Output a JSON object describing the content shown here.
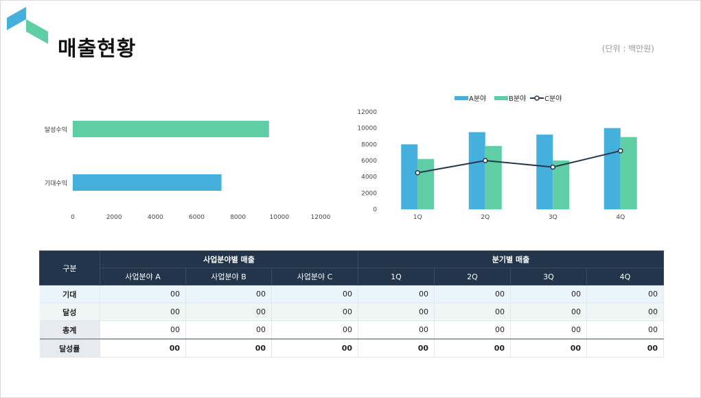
{
  "header": {
    "title": "매출현황",
    "unit": "(단위 : 백만원)"
  },
  "colors": {
    "a": "#45b0dc",
    "b": "#5fcea4",
    "line": "#25374a",
    "header": "#22354a"
  },
  "chart_data": [
    {
      "type": "bar",
      "orientation": "horizontal",
      "categories": [
        "달성수익",
        "기대수익"
      ],
      "values": [
        9500,
        7200
      ],
      "xlim": [
        0,
        12000
      ],
      "xticks": [
        "0",
        "2000",
        "4000",
        "6000",
        "8000",
        "10000",
        "12000"
      ],
      "bar_colors": [
        "#5fcea4",
        "#45b0dc"
      ]
    },
    {
      "type": "bar",
      "categories": [
        "1Q",
        "2Q",
        "3Q",
        "4Q"
      ],
      "ylim": [
        0,
        12000
      ],
      "yticks": [
        "0",
        "2000",
        "4000",
        "6000",
        "8000",
        "10000",
        "12000"
      ],
      "series": [
        {
          "name": "A분야",
          "type": "bar",
          "color": "#45b0dc",
          "values": [
            8000,
            9500,
            9200,
            10000
          ]
        },
        {
          "name": "B분야",
          "type": "bar",
          "color": "#5fcea4",
          "values": [
            6200,
            7800,
            6000,
            8900
          ]
        },
        {
          "name": "C분야",
          "type": "line",
          "color": "#25374a",
          "values": [
            4500,
            6000,
            5200,
            7200
          ]
        }
      ],
      "legend": "top-center"
    }
  ],
  "table": {
    "corner": "구분",
    "group1": "사업분야별 매출",
    "group2": "분기별 매출",
    "cols": [
      "사업분야 A",
      "사업분야 B",
      "사업분야 C",
      "1Q",
      "2Q",
      "3Q",
      "4Q"
    ],
    "rows": [
      {
        "label": "기대",
        "cells": [
          "00",
          "00",
          "00",
          "00",
          "00",
          "00",
          "00"
        ]
      },
      {
        "label": "달성",
        "cells": [
          "00",
          "00",
          "00",
          "00",
          "00",
          "00",
          "00"
        ]
      },
      {
        "label": "총계",
        "cells": [
          "00",
          "00",
          "00",
          "00",
          "00",
          "00",
          "00"
        ]
      },
      {
        "label": "달성률",
        "cells": [
          "00",
          "00",
          "00",
          "00",
          "00",
          "00",
          "00"
        ]
      }
    ]
  }
}
